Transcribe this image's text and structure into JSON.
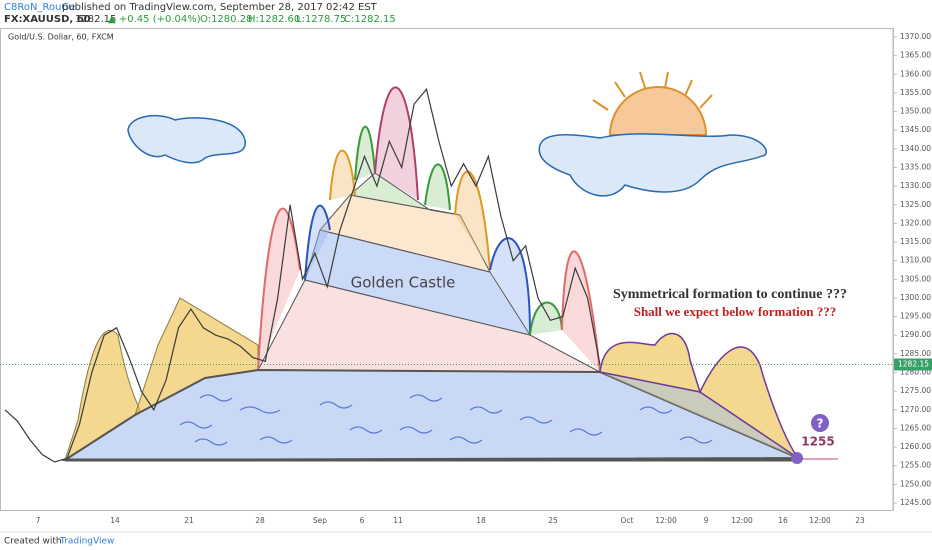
{
  "header": {
    "author": "C8RoN_RouGe",
    "published": "published on TradingView.com, September 28, 2017 02:42 EST",
    "symbol": "FX:XAUUSD, 60",
    "price": "1282.15",
    "change": "▲ +0.45 (+0.04%)",
    "ohlc": [
      "O:1280.28",
      "H:1282.60",
      "L:1278.75",
      "C:1282.15"
    ]
  },
  "chart": {
    "legend": "Gold/U.S. Dollar, 60, FXCM",
    "price_axis": [
      "1245.00",
      "1250.00",
      "1255.00",
      "1260.00",
      "1265.00",
      "1270.00",
      "1275.00",
      "1280.00",
      "1285.00",
      "1290.00",
      "1295.00",
      "1300.00",
      "1305.00",
      "1310.00",
      "1315.00",
      "1320.00",
      "1325.00",
      "1330.00",
      "1335.00",
      "1340.00",
      "1345.00",
      "1350.00",
      "1355.00",
      "1360.00",
      "1365.00",
      "1370.00"
    ],
    "last_price": "1282.15",
    "time_axis": [
      "7",
      "14",
      "21",
      "28",
      "Sep",
      "6",
      "11",
      "18",
      "25",
      "Oct",
      "12:00",
      "9",
      "12:00",
      "16",
      "12:00",
      "23"
    ],
    "price_line": {
      "values": [
        1270,
        1267,
        1262,
        1258,
        1256,
        1257,
        1266,
        1280,
        1290,
        1292,
        1284,
        1275,
        1270,
        1278,
        1292,
        1297,
        1292,
        1290,
        1289,
        1287,
        1284,
        1283,
        1300,
        1325,
        1305,
        1312,
        1303,
        1318,
        1328,
        1338,
        1330,
        1342,
        1335,
        1352,
        1356,
        1342,
        1330,
        1336,
        1330,
        1338,
        1322,
        1310,
        1314,
        1300,
        1294,
        1295,
        1308,
        1300,
        1282
      ]
    },
    "annotations": {
      "castle": "Golden Castle",
      "question1": "Symmetrical formation to continue ???",
      "question2": "Shall we expect below formation ???",
      "mark": "?",
      "target": "1255"
    }
  },
  "footer": {
    "created": "Created with",
    "brand": "TradingView"
  }
}
